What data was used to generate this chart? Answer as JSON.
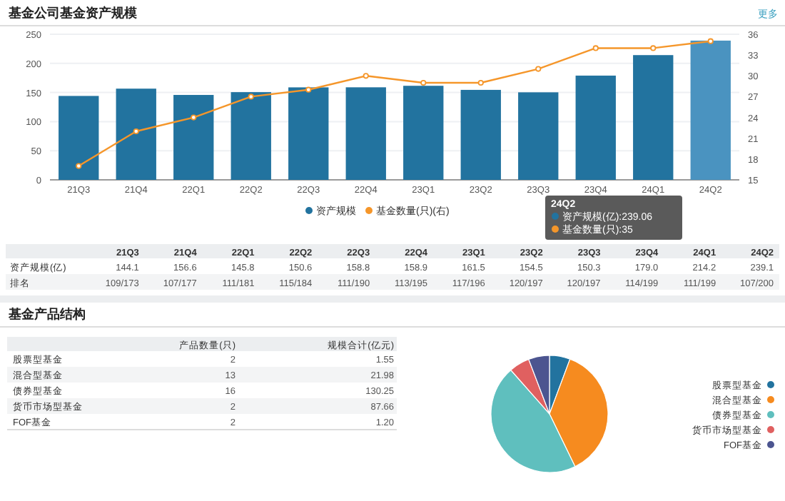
{
  "chart_data": [
    {
      "type": "bar",
      "title": "基金公司基金资产规模",
      "categories": [
        "21Q3",
        "21Q4",
        "22Q1",
        "22Q2",
        "22Q3",
        "22Q4",
        "23Q1",
        "23Q2",
        "23Q3",
        "23Q4",
        "24Q1",
        "24Q2"
      ],
      "series": [
        {
          "name": "资产规模",
          "color": "#22739f",
          "colors": [
            "#22739f",
            "#22739f",
            "#22739f",
            "#22739f",
            "#22739f",
            "#22739f",
            "#22739f",
            "#22739f",
            "#22739f",
            "#22739f",
            "#22739f",
            "#4a93c0"
          ],
          "values": [
            144.1,
            156.6,
            145.8,
            150.6,
            158.8,
            158.9,
            161.5,
            154.5,
            150.3,
            179.0,
            214.2,
            239.1
          ]
        },
        {
          "name": "基金数量(只)(右)",
          "type": "line",
          "axis": "y2",
          "color": "#f5962a",
          "values": [
            17,
            22,
            24,
            27,
            28,
            30,
            29,
            29,
            31,
            34,
            34,
            35
          ]
        }
      ],
      "ylim": [
        0,
        250
      ],
      "yticks": [
        0,
        50,
        100,
        150,
        200,
        250
      ],
      "y2lim": [
        15,
        36
      ],
      "y2ticks": [
        15,
        18,
        21,
        24,
        27,
        30,
        33,
        36
      ],
      "grid": "y",
      "legend": "bottom",
      "marker": "circle",
      "annotations": [
        "更多",
        "资产规模(亿)",
        "排名",
        "144.1",
        "156.6",
        "145.8",
        "150.6",
        "158.8",
        "158.9",
        "161.5",
        "154.5",
        "150.3",
        "179.0",
        "214.2",
        "239.1",
        "109/173",
        "107/177",
        "111/181",
        "115/184",
        "111/190",
        "113/195",
        "117/196",
        "120/197",
        "120/197",
        "114/199",
        "111/199",
        "107/200",
        "24Q2",
        "资产规模(亿):239.06",
        "基金数量(只):35"
      ]
    },
    {
      "type": "pie",
      "categories": [
        "股票型基金",
        "混合型基金",
        "债券型基金",
        "货币市场型基金",
        "FOF基金"
      ],
      "values": [
        5.7,
        37.1,
        45.7,
        5.7,
        5.8
      ],
      "colors": [
        "#22739f",
        "#f68b1f",
        "#5fbfbe",
        "#e06060",
        "#4c5590"
      ],
      "legend": "right",
      "annotations": [
        "基金产品结构",
        "产品数量(只)",
        "规模合计(亿元)",
        "2",
        "13",
        "16",
        "2",
        "2",
        "1.55",
        "21.98",
        "130.25",
        "87.66",
        "1.20"
      ]
    }
  ]
}
